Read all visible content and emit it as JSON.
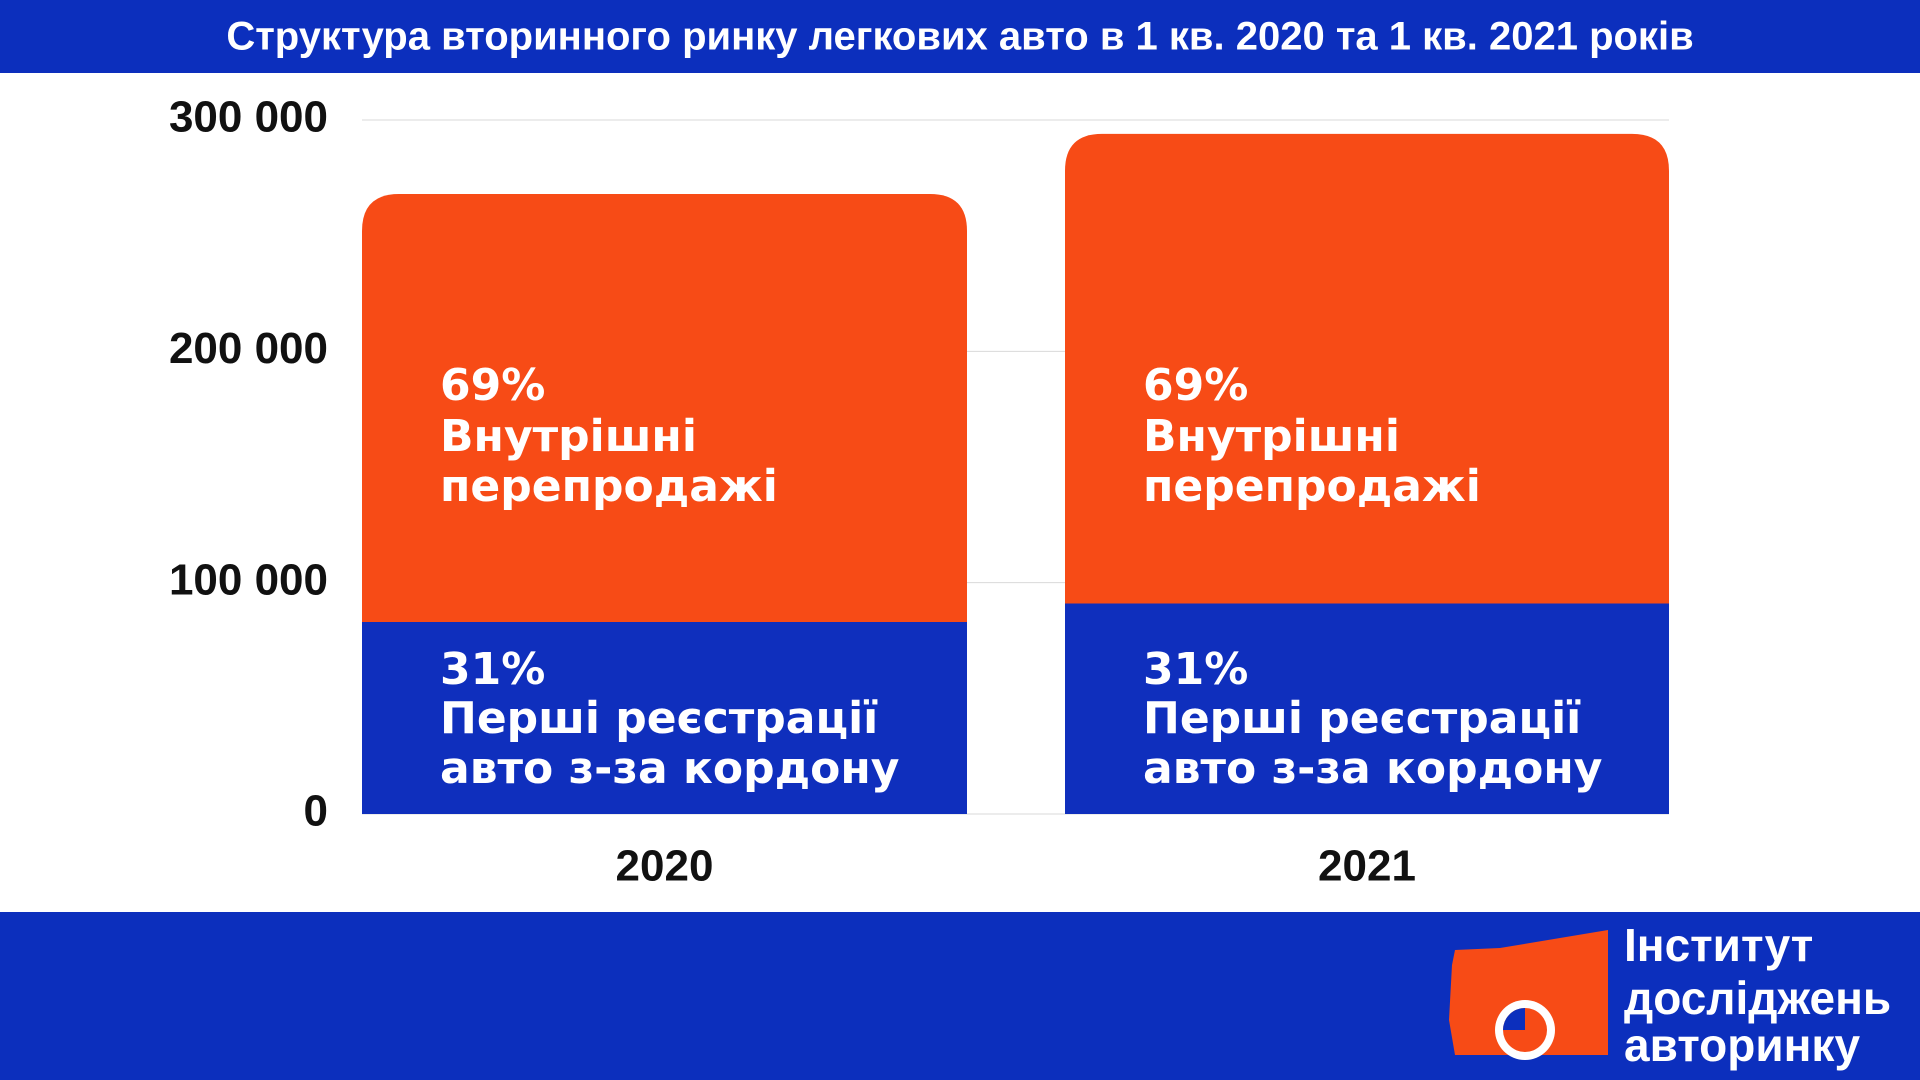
{
  "chart_data": {
    "type": "stacked_bar",
    "title": "Структура вторинного ринку легкових авто в 1 кв. 2020 та 1 кв. 2021 років",
    "categories": [
      "2020",
      "2021"
    ],
    "series": [
      {
        "name": "Перші реєстрації авто з-за кордону",
        "color": "#0f2fbd",
        "values": [
          83000,
          91000
        ],
        "value_labels": [
          "31%",
          "31%"
        ]
      },
      {
        "name": "Внутрішні перепродажі",
        "color": "#f74b16",
        "values": [
          185000,
          203000
        ],
        "value_labels": [
          "69%",
          "69%"
        ]
      }
    ],
    "ylim": [
      0,
      300000
    ],
    "yticks": [
      0,
      {
        "value": 100000,
        "label": "100 000"
      },
      {
        "value": 200000,
        "label": "200 000"
      },
      {
        "value": 300000,
        "label": "300 000"
      }
    ],
    "grid": true
  },
  "logo": {
    "lines": [
      "Інститут",
      "досліджень",
      "авторинку"
    ]
  }
}
